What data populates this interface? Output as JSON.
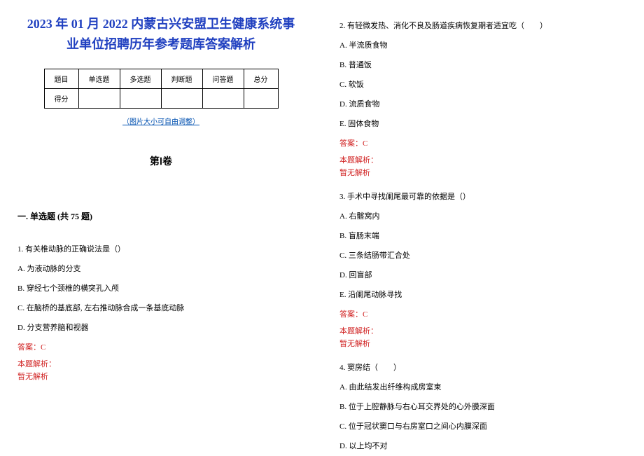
{
  "title_line1": "2023 年 01 月 2022 内蒙古兴安盟卫生健康系统事",
  "title_line2": "业单位招聘历年参考题库答案解析",
  "score_table": {
    "headers": [
      "题目",
      "单选题",
      "多选题",
      "判断题",
      "问答题",
      "总分"
    ],
    "row_label": "得分"
  },
  "hint": "（图片大小可自由调整）",
  "volume": "第Ⅰ卷",
  "section": "一. 单选题 (共 75 题)",
  "q1": {
    "stem": "1. 有关椎动脉的正确说法是（）",
    "a": "A. 为液动脉的分支",
    "b": "B. 穿经七个颈椎的横突孔入颅",
    "c": "C. 在脑桥的基底部, 左右推动脉合成一条基底动脉",
    "d": "D. 分支营养脑和视器",
    "answer": "答案：C",
    "analysis_label": "本题解析：",
    "analysis_text": "暂无解析"
  },
  "q2": {
    "stem": "2. 有轻微发热、消化不良及肠道疾病恢复期者适宜吃（　　）",
    "a": "A. 半流质食物",
    "b": "B. 普通饭",
    "c": "C. 软饭",
    "d": "D. 流质食物",
    "e": "E. 固体食物",
    "answer": "答案：C",
    "analysis_label": "本题解析：",
    "analysis_text": "暂无解析"
  },
  "q3": {
    "stem": "3. 手术中寻找阑尾最可靠的依据是（）",
    "a": "A. 右髂窝内",
    "b": "B. 盲肠末端",
    "c": "C. 三条结肠带汇合处",
    "d": "D. 回盲部",
    "e": "E. 沿阑尾动脉寻找",
    "answer": "答案：C",
    "analysis_label": "本题解析：",
    "analysis_text": "暂无解析"
  },
  "q4": {
    "stem": "4. 窦房结（　　）",
    "a": "A. 由此结发出纤维构成房室束",
    "b": "B. 位于上腔静脉与右心耳交界处的心外膜深面",
    "c": "C. 位于冠状窦口与右房室口之间心内膜深面",
    "d": "D. 以上均不对"
  },
  "colors": {
    "title": "#2040c0",
    "hint": "#0050b0",
    "answer": "#d02020",
    "text": "#000000",
    "bg": "#ffffff"
  }
}
